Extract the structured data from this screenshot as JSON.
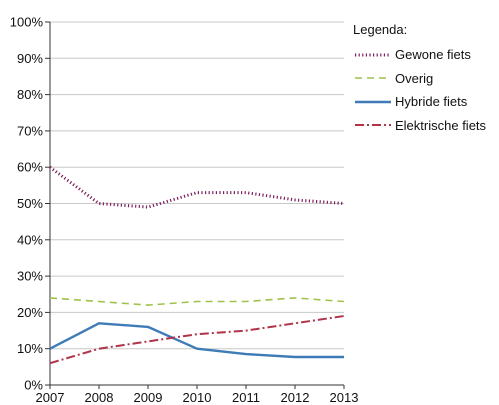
{
  "chart_data": {
    "type": "line",
    "x": [
      "2007",
      "2008",
      "2009",
      "2010",
      "2011",
      "2012",
      "2013"
    ],
    "y_ticks": [
      "0%",
      "10%",
      "20%",
      "30%",
      "40%",
      "50%",
      "60%",
      "70%",
      "80%",
      "90%",
      "100%"
    ],
    "ylim": [
      0,
      100
    ],
    "grid": "horizontal",
    "legend_position": "right",
    "legend_title": "Legenda:",
    "series": [
      {
        "name": "Gewone fiets",
        "values": [
          60,
          50,
          49,
          53,
          53,
          51,
          50
        ],
        "color": "#7b1f5e",
        "style": "dotted"
      },
      {
        "name": "Overig",
        "values": [
          24,
          23,
          22,
          23,
          23,
          24,
          23
        ],
        "color": "#9fc24a",
        "style": "dashed"
      },
      {
        "name": "Hybride fiets",
        "values": [
          10,
          17,
          16,
          10,
          8.5,
          7.7,
          7.7
        ],
        "color": "#3f7cb7",
        "style": "solid"
      },
      {
        "name": "Elektrische fiets",
        "values": [
          6,
          10,
          12,
          14,
          15,
          17,
          19
        ],
        "color": "#b0334a",
        "style": "dashdot"
      }
    ]
  }
}
